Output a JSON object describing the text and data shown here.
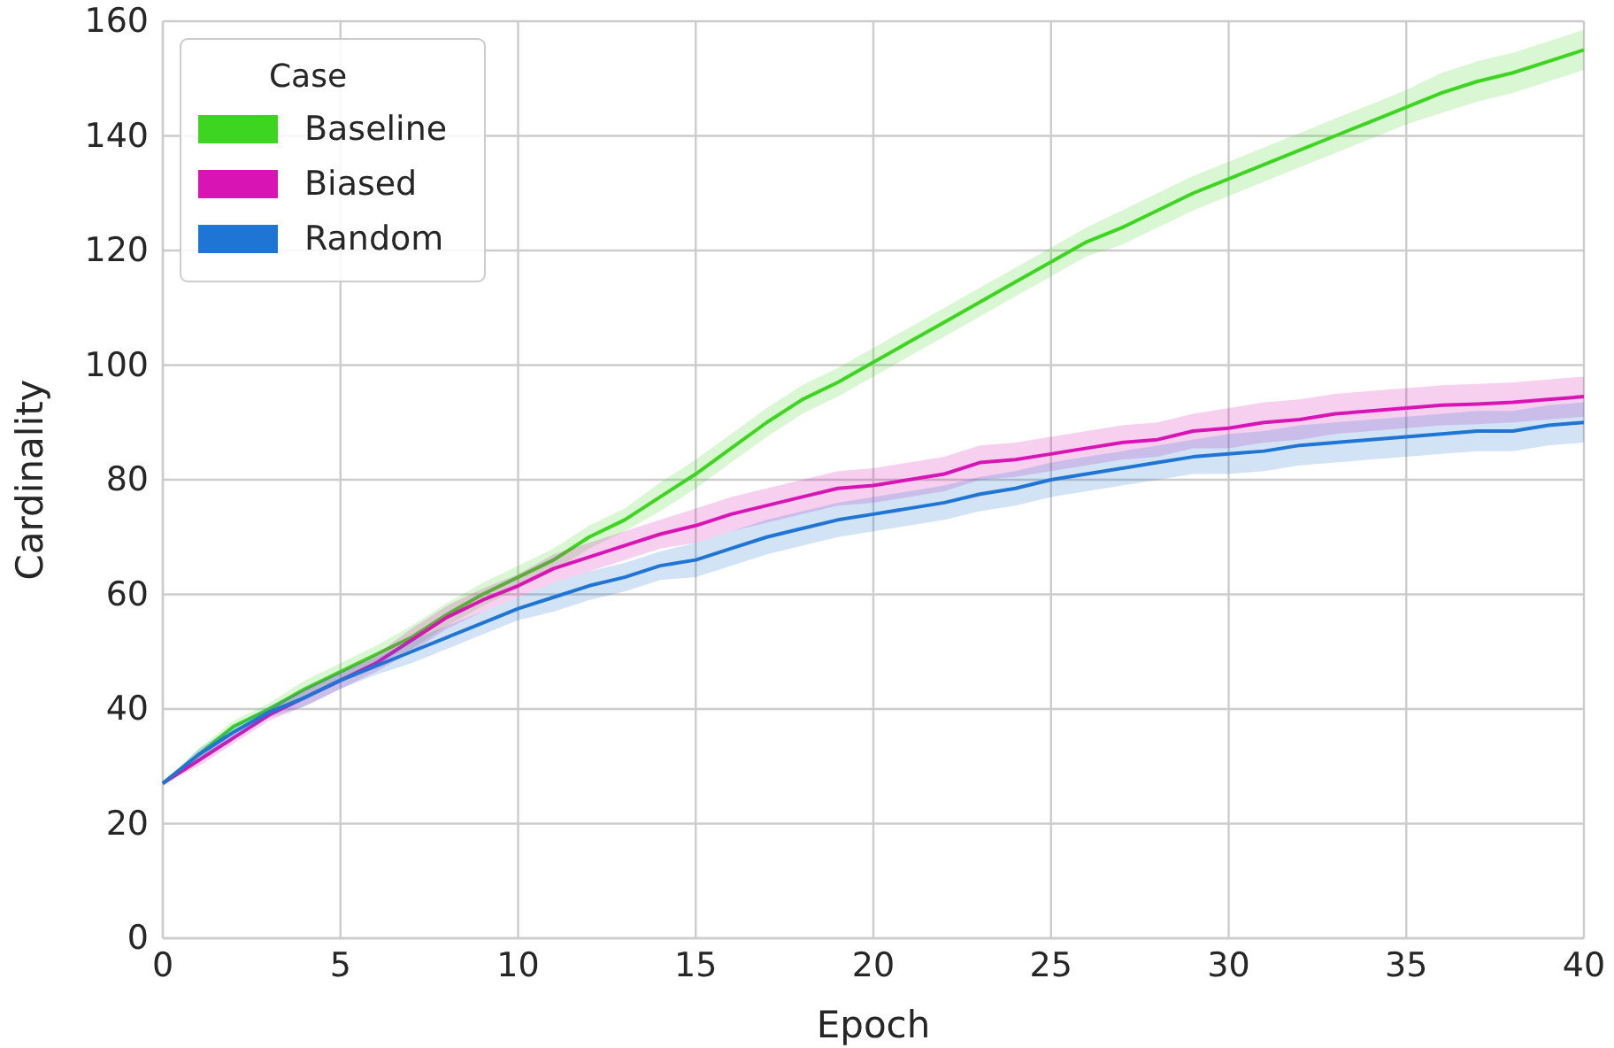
{
  "chart_data": {
    "type": "line",
    "xlabel": "Epoch",
    "ylabel": "Cardinality",
    "legend_title": "Case",
    "legend": "top left",
    "grid": true,
    "x": [
      0,
      1,
      2,
      3,
      4,
      5,
      6,
      7,
      8,
      9,
      10,
      11,
      12,
      13,
      14,
      15,
      16,
      17,
      18,
      19,
      20,
      21,
      22,
      23,
      24,
      25,
      26,
      27,
      28,
      29,
      30,
      31,
      32,
      33,
      34,
      35,
      36,
      37,
      38,
      39,
      40
    ],
    "xlim": [
      0,
      40
    ],
    "xticks": [
      0,
      5,
      10,
      15,
      20,
      25,
      30,
      35,
      40
    ],
    "ylim": [
      0,
      160
    ],
    "yticks": [
      0,
      20,
      40,
      60,
      80,
      100,
      120,
      140,
      160
    ],
    "series": [
      {
        "name": "Baseline",
        "color": "#3dd51f",
        "values": [
          27,
          32,
          37,
          40,
          43.5,
          46.5,
          49.5,
          52.5,
          56.5,
          60,
          63,
          66,
          70,
          73,
          77,
          81,
          85.5,
          90,
          94,
          97,
          100.5,
          104,
          107.5,
          111,
          114.5,
          118,
          121.5,
          124,
          127,
          130,
          132.5,
          135,
          137.5,
          140,
          142.5,
          145,
          147.5,
          149.5,
          151,
          153,
          155
        ],
        "lower": [
          27,
          31,
          36,
          39,
          42,
          45,
          48,
          50.5,
          54.5,
          58,
          61,
          64,
          68,
          71,
          74.5,
          78.5,
          83,
          87.5,
          91.5,
          94.5,
          98,
          101.5,
          105,
          108.5,
          112,
          115.5,
          119,
          121,
          124,
          127,
          129.5,
          132,
          134.5,
          137,
          139.5,
          142,
          144,
          146,
          147.5,
          149.5,
          151.5
        ],
        "upper": [
          27,
          33,
          38,
          41,
          45,
          48,
          51,
          54.5,
          58.5,
          62,
          65,
          68,
          72,
          75,
          79.5,
          83.5,
          88,
          92.5,
          96.5,
          99.5,
          103,
          106.5,
          110,
          113.5,
          117,
          120.5,
          124,
          127,
          130,
          133,
          135.5,
          138,
          140.5,
          143,
          145.5,
          148,
          151,
          153,
          154.5,
          156.5,
          158.5
        ]
      },
      {
        "name": "Biased",
        "color": "#d914b5",
        "values": [
          27,
          31,
          35,
          39,
          42,
          45,
          48,
          52,
          56,
          59,
          61.5,
          64.5,
          66.5,
          68.5,
          70.5,
          72,
          74,
          75.5,
          77,
          78.5,
          79,
          80,
          81,
          83,
          83.5,
          84.5,
          85.5,
          86.5,
          87,
          88.5,
          89,
          90,
          90.5,
          91.5,
          92,
          92.5,
          93,
          93.2,
          93.5,
          94,
          94.5
        ],
        "lower": [
          27,
          30,
          34,
          38,
          40.5,
          43.5,
          46.5,
          50,
          54,
          57,
          59.5,
          62,
          64,
          66,
          68,
          69,
          71,
          72.5,
          74,
          75.5,
          76,
          77,
          78,
          80,
          80.5,
          81.5,
          82.5,
          83.5,
          84,
          85.5,
          85.5,
          86.5,
          87,
          88,
          88.5,
          89,
          89.5,
          89.7,
          90,
          90.5,
          91
        ],
        "upper": [
          27,
          32,
          36,
          40,
          43.5,
          46.5,
          49.5,
          54,
          58,
          61,
          63.5,
          67,
          69,
          71,
          73,
          75,
          77,
          78.5,
          80,
          81.5,
          82,
          83,
          84,
          86,
          86.5,
          87.5,
          88.5,
          89.5,
          90,
          91.5,
          92.5,
          93.5,
          94,
          95,
          95.5,
          96,
          96.5,
          96.7,
          97,
          97.5,
          98
        ]
      },
      {
        "name": "Random",
        "color": "#1f75d4",
        "values": [
          27,
          32,
          36,
          39.5,
          42,
          45,
          47.5,
          50,
          52.5,
          55,
          57.5,
          59.5,
          61.5,
          63,
          65,
          66,
          68,
          70,
          71.5,
          73,
          74,
          75,
          76,
          77.5,
          78.5,
          80,
          81,
          82,
          83,
          84,
          84.5,
          85,
          86,
          86.5,
          87,
          87.5,
          88,
          88.5,
          88.5,
          89.5,
          90
        ],
        "lower": [
          27,
          31,
          35,
          38.5,
          40.5,
          43.5,
          46,
          48,
          50.5,
          53,
          55.5,
          57,
          59,
          60.5,
          62.5,
          63,
          65,
          67,
          68.5,
          70,
          71,
          72,
          73,
          74.5,
          75.5,
          77,
          78,
          79,
          80,
          81,
          81,
          81.5,
          82.5,
          83,
          83.5,
          84,
          84.5,
          85,
          85,
          86,
          86.5
        ],
        "upper": [
          27,
          33,
          37,
          40.5,
          43.5,
          46.5,
          49,
          52,
          54.5,
          57,
          59.5,
          62,
          64,
          65.5,
          67.5,
          69,
          71,
          73,
          74.5,
          76,
          77,
          78,
          79,
          80.5,
          81.5,
          83,
          84,
          85,
          86,
          87,
          88,
          88.5,
          89.5,
          90,
          90.5,
          91,
          91.5,
          92,
          92,
          93,
          93.5
        ]
      }
    ]
  }
}
